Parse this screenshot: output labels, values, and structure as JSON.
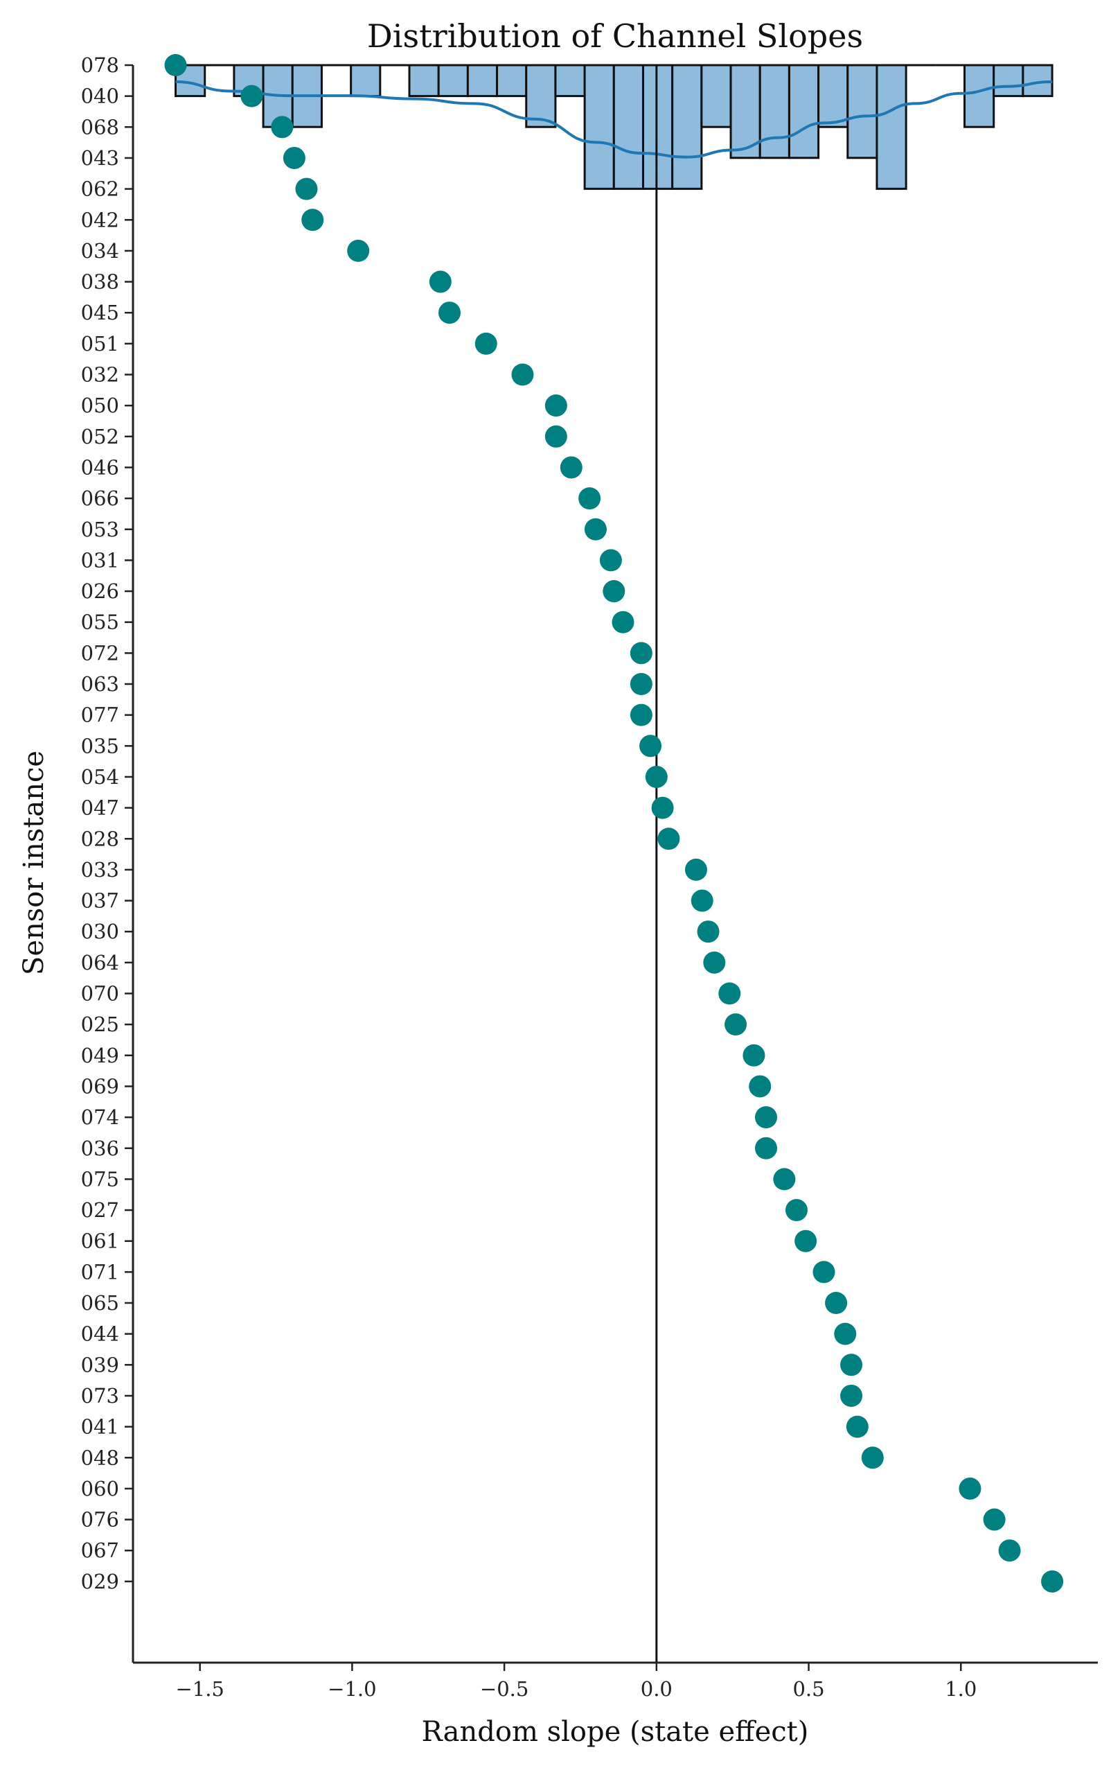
{
  "chart_data": {
    "type": "scatter",
    "title": "Distribution of Channel Slopes",
    "xlabel": "Random slope (state effect)",
    "ylabel": "Sensor instance",
    "xlim": [
      -1.72,
      1.45
    ],
    "xticks": [
      -1.5,
      -1.0,
      -0.5,
      0.0,
      0.5,
      1.0
    ],
    "xtick_labels": [
      "−1.5",
      "−1.0",
      "−0.5",
      "0.0",
      "0.5",
      "1.0"
    ],
    "reference_line_x": 0.0,
    "grid": false,
    "colors": {
      "points": "#008080",
      "hist_fill": "#8fbcdc",
      "hist_edge": "#111111",
      "kde": "#1f77b4",
      "axes": "#222222"
    },
    "series": [
      {
        "categories": [
          "078",
          "040",
          "068",
          "043",
          "062",
          "042",
          "034",
          "038",
          "045",
          "051",
          "032",
          "050",
          "052",
          "046",
          "066",
          "053",
          "031",
          "026",
          "055",
          "072",
          "063",
          "077",
          "035",
          "054",
          "047",
          "028",
          "033",
          "037",
          "030",
          "064",
          "070",
          "025",
          "049",
          "069",
          "074",
          "036",
          "075",
          "027",
          "061",
          "071",
          "065",
          "044",
          "039",
          "073",
          "041",
          "048",
          "060",
          "076",
          "067",
          "029"
        ],
        "values": [
          -1.58,
          -1.33,
          -1.23,
          -1.19,
          -1.15,
          -1.13,
          -0.98,
          -0.71,
          -0.68,
          -0.56,
          -0.44,
          -0.33,
          -0.33,
          -0.28,
          -0.22,
          -0.2,
          -0.15,
          -0.14,
          -0.11,
          -0.05,
          -0.05,
          -0.05,
          -0.02,
          0.0,
          0.02,
          0.04,
          0.13,
          0.15,
          0.17,
          0.19,
          0.24,
          0.26,
          0.32,
          0.34,
          0.36,
          0.36,
          0.42,
          0.46,
          0.49,
          0.55,
          0.59,
          0.62,
          0.64,
          0.64,
          0.66,
          0.71,
          1.03,
          1.11,
          1.16,
          1.3
        ]
      }
    ],
    "marginal_histogram": {
      "bin_edges": [
        -1.58,
        -1.484,
        -1.388,
        -1.292,
        -1.196,
        -1.1,
        -1.004,
        -0.908,
        -0.812,
        -0.716,
        -0.62,
        -0.524,
        -0.428,
        -0.332,
        -0.236,
        -0.14,
        -0.044,
        0.052,
        0.148,
        0.244,
        0.34,
        0.436,
        0.532,
        0.628,
        0.724,
        0.82,
        0.916,
        1.012,
        1.108,
        1.204,
        1.3
      ],
      "counts": [
        1,
        0,
        1,
        2,
        2,
        0,
        1,
        0,
        1,
        1,
        1,
        1,
        2,
        1,
        4,
        4,
        4,
        4,
        2,
        3,
        3,
        3,
        2,
        3,
        4,
        0,
        0,
        2,
        1,
        1
      ]
    },
    "kde_line": {
      "x": [
        -1.58,
        -1.4,
        -1.2,
        -1.0,
        -0.8,
        -0.6,
        -0.4,
        -0.2,
        -0.05,
        0.1,
        0.25,
        0.4,
        0.55,
        0.7,
        0.85,
        1.0,
        1.15,
        1.3
      ],
      "y": [
        1.0,
        0.88,
        0.82,
        0.82,
        0.78,
        0.72,
        0.52,
        0.22,
        0.08,
        0.03,
        0.12,
        0.28,
        0.47,
        0.56,
        0.72,
        0.85,
        0.94,
        1.0
      ]
    }
  }
}
